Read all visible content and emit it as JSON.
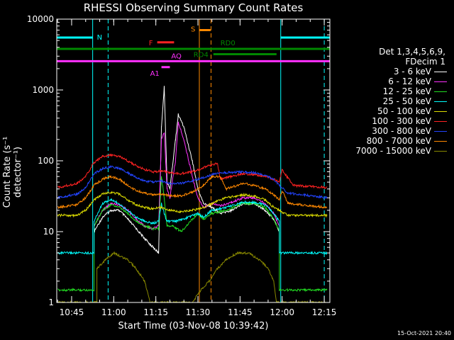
{
  "chart_data": {
    "type": "line",
    "title": "RHESSI Observing Summary Count Rates",
    "ylabel": "Count Rate (s⁻¹ detector⁻¹)",
    "xlabel": "Start Time (03-Nov-08 10:39:42)",
    "yscale": "log",
    "ylim": [
      1,
      10000
    ],
    "xlim": [
      "10:39:42",
      "12:17:00"
    ],
    "xticks": [
      "10:45",
      "11:00",
      "11:15",
      "11:30",
      "11:45",
      "12:00",
      "12:15"
    ],
    "yticks": [
      "1",
      "10",
      "100",
      "1000",
      "10000"
    ],
    "legend_header": [
      "Det 1,3,4,5,6,9,",
      "FDecim 1"
    ],
    "legend_position": "right",
    "series": [
      {
        "name": "3 - 6 keV",
        "color": "#ffffff",
        "points": [
          [
            "10:53",
            10
          ],
          [
            "10:56",
            16
          ],
          [
            "10:59",
            20
          ],
          [
            "11:02",
            20
          ],
          [
            "11:05",
            15
          ],
          [
            "11:08",
            11
          ],
          [
            "11:11",
            8
          ],
          [
            "11:14",
            6
          ],
          [
            "11:16",
            5
          ],
          [
            "11:17",
            300
          ],
          [
            "11:18",
            1100
          ],
          [
            "11:19",
            50
          ],
          [
            "11:20",
            40
          ],
          [
            "11:22",
            200
          ],
          [
            "11:23",
            450
          ],
          [
            "11:25",
            300
          ],
          [
            "11:28",
            100
          ],
          [
            "11:30",
            40
          ],
          [
            "11:32",
            25
          ],
          [
            "11:35",
            22
          ],
          [
            "11:38",
            18
          ],
          [
            "11:42",
            20
          ],
          [
            "11:46",
            25
          ],
          [
            "11:50",
            25
          ],
          [
            "11:54",
            20
          ],
          [
            "11:57",
            15
          ],
          [
            "11:59",
            10
          ]
        ]
      },
      {
        "name": "6 - 12 keV",
        "color": "#ff30ff",
        "points": [
          [
            "10:53",
            12
          ],
          [
            "10:56",
            20
          ],
          [
            "10:59",
            25
          ],
          [
            "11:02",
            24
          ],
          [
            "11:05",
            20
          ],
          [
            "11:08",
            15
          ],
          [
            "11:11",
            12
          ],
          [
            "11:14",
            11
          ],
          [
            "11:16",
            12
          ],
          [
            "11:17",
            200
          ],
          [
            "11:18",
            250
          ],
          [
            "11:19",
            40
          ],
          [
            "11:20",
            30
          ],
          [
            "11:22",
            100
          ],
          [
            "11:23",
            350
          ],
          [
            "11:25",
            200
          ],
          [
            "11:28",
            60
          ],
          [
            "11:30",
            30
          ],
          [
            "11:32",
            22
          ],
          [
            "11:35",
            25
          ],
          [
            "11:38",
            23
          ],
          [
            "11:42",
            26
          ],
          [
            "11:46",
            30
          ],
          [
            "11:50",
            30
          ],
          [
            "11:54",
            25
          ],
          [
            "11:57",
            18
          ],
          [
            "11:59",
            12
          ]
        ]
      },
      {
        "name": "12 - 25 keV",
        "color": "#22dd22",
        "points": [
          [
            "10:40",
            1.5
          ],
          [
            "10:53",
            1.5
          ],
          [
            "10:53",
            12
          ],
          [
            "10:56",
            20
          ],
          [
            "10:59",
            24
          ],
          [
            "11:02",
            22
          ],
          [
            "11:05",
            18
          ],
          [
            "11:08",
            14
          ],
          [
            "11:11",
            12
          ],
          [
            "11:14",
            11
          ],
          [
            "11:16",
            11
          ],
          [
            "11:17",
            60
          ],
          [
            "11:18",
            30
          ],
          [
            "11:19",
            12
          ],
          [
            "11:21",
            12
          ],
          [
            "11:24",
            10
          ],
          [
            "11:28",
            15
          ],
          [
            "11:30",
            18
          ],
          [
            "11:32",
            15
          ],
          [
            "11:35",
            18
          ],
          [
            "11:40",
            20
          ],
          [
            "11:46",
            25
          ],
          [
            "11:50",
            25
          ],
          [
            "11:54",
            22
          ],
          [
            "11:57",
            15
          ],
          [
            "11:59",
            10
          ],
          [
            "11:59",
            1.5
          ],
          [
            "12:16",
            1.5
          ]
        ]
      },
      {
        "name": "25 - 50 keV",
        "color": "#00ffff",
        "points": [
          [
            "10:40",
            5
          ],
          [
            "10:53",
            5
          ],
          [
            "10:53",
            14
          ],
          [
            "10:56",
            25
          ],
          [
            "10:59",
            28
          ],
          [
            "11:02",
            25
          ],
          [
            "11:05",
            20
          ],
          [
            "11:08",
            16
          ],
          [
            "11:11",
            14
          ],
          [
            "11:14",
            13
          ],
          [
            "11:16",
            14
          ],
          [
            "11:17",
            25
          ],
          [
            "11:18",
            18
          ],
          [
            "11:19",
            14
          ],
          [
            "11:22",
            14
          ],
          [
            "11:25",
            15
          ],
          [
            "11:28",
            17
          ],
          [
            "11:30",
            18
          ],
          [
            "11:32",
            16
          ],
          [
            "11:35",
            20
          ],
          [
            "11:40",
            22
          ],
          [
            "11:46",
            26
          ],
          [
            "11:50",
            26
          ],
          [
            "11:54",
            24
          ],
          [
            "11:57",
            18
          ],
          [
            "11:59",
            14
          ],
          [
            "11:59",
            5
          ],
          [
            "12:16",
            5
          ]
        ]
      },
      {
        "name": "50 - 100 keV",
        "color": "#dddd00",
        "points": [
          [
            "10:40",
            17
          ],
          [
            "10:47",
            17
          ],
          [
            "10:50",
            20
          ],
          [
            "10:53",
            28
          ],
          [
            "10:56",
            34
          ],
          [
            "10:59",
            36
          ],
          [
            "11:02",
            34
          ],
          [
            "11:05",
            28
          ],
          [
            "11:08",
            24
          ],
          [
            "11:11",
            22
          ],
          [
            "11:14",
            21
          ],
          [
            "11:17",
            22
          ],
          [
            "11:20",
            20
          ],
          [
            "11:24",
            19
          ],
          [
            "11:28",
            20
          ],
          [
            "11:32",
            22
          ],
          [
            "11:36",
            26
          ],
          [
            "11:40",
            30
          ],
          [
            "11:46",
            33
          ],
          [
            "11:50",
            32
          ],
          [
            "11:54",
            28
          ],
          [
            "11:57",
            22
          ],
          [
            "11:59",
            20
          ],
          [
            "12:02",
            17
          ],
          [
            "12:16",
            17
          ]
        ]
      },
      {
        "name": "100 - 300 keV",
        "color": "#ff2222",
        "points": [
          [
            "10:40",
            42
          ],
          [
            "10:47",
            48
          ],
          [
            "10:50",
            60
          ],
          [
            "10:53",
            95
          ],
          [
            "10:56",
            115
          ],
          [
            "10:59",
            120
          ],
          [
            "11:02",
            115
          ],
          [
            "11:05",
            100
          ],
          [
            "11:08",
            85
          ],
          [
            "11:11",
            75
          ],
          [
            "11:14",
            70
          ],
          [
            "11:17",
            72
          ],
          [
            "11:20",
            68
          ],
          [
            "11:24",
            66
          ],
          [
            "11:28",
            70
          ],
          [
            "11:32",
            80
          ],
          [
            "11:36",
            90
          ],
          [
            "11:37",
            90
          ],
          [
            "11:38",
            55
          ],
          [
            "11:42",
            60
          ],
          [
            "11:46",
            66
          ],
          [
            "11:50",
            64
          ],
          [
            "11:54",
            60
          ],
          [
            "11:57",
            55
          ],
          [
            "11:59",
            50
          ],
          [
            "12:00",
            75
          ],
          [
            "12:01",
            65
          ],
          [
            "12:04",
            45
          ],
          [
            "12:16",
            42
          ]
        ]
      },
      {
        "name": "300 - 800 keV",
        "color": "#2244ff",
        "points": [
          [
            "10:40",
            30
          ],
          [
            "10:47",
            34
          ],
          [
            "10:50",
            42
          ],
          [
            "10:53",
            65
          ],
          [
            "10:56",
            78
          ],
          [
            "10:59",
            82
          ],
          [
            "11:02",
            78
          ],
          [
            "11:05",
            68
          ],
          [
            "11:08",
            58
          ],
          [
            "11:11",
            52
          ],
          [
            "11:14",
            50
          ],
          [
            "11:17",
            52
          ],
          [
            "11:20",
            48
          ],
          [
            "11:24",
            48
          ],
          [
            "11:28",
            52
          ],
          [
            "11:32",
            58
          ],
          [
            "11:36",
            65
          ],
          [
            "11:40",
            68
          ],
          [
            "11:46",
            70
          ],
          [
            "11:50",
            68
          ],
          [
            "11:54",
            62
          ],
          [
            "11:57",
            55
          ],
          [
            "11:59",
            45
          ],
          [
            "12:02",
            35
          ],
          [
            "12:16",
            30
          ]
        ]
      },
      {
        "name": "800 - 7000 keV",
        "color": "#ff8800",
        "points": [
          [
            "10:40",
            22
          ],
          [
            "10:47",
            24
          ],
          [
            "10:50",
            30
          ],
          [
            "10:53",
            45
          ],
          [
            "10:56",
            55
          ],
          [
            "10:59",
            60
          ],
          [
            "11:02",
            55
          ],
          [
            "11:05",
            45
          ],
          [
            "11:08",
            38
          ],
          [
            "11:11",
            35
          ],
          [
            "11:14",
            33
          ],
          [
            "11:17",
            34
          ],
          [
            "11:20",
            32
          ],
          [
            "11:24",
            32
          ],
          [
            "11:28",
            36
          ],
          [
            "11:32",
            45
          ],
          [
            "11:35",
            60
          ],
          [
            "11:38",
            60
          ],
          [
            "11:40",
            40
          ],
          [
            "11:44",
            45
          ],
          [
            "11:46",
            48
          ],
          [
            "11:50",
            45
          ],
          [
            "11:54",
            40
          ],
          [
            "11:57",
            33
          ],
          [
            "11:59",
            28
          ],
          [
            "12:00",
            38
          ],
          [
            "12:02",
            25
          ],
          [
            "12:16",
            22
          ]
        ]
      },
      {
        "name": "7000 - 15000 keV",
        "color": "#888800",
        "points": [
          [
            "10:40",
            1
          ],
          [
            "10:54",
            1
          ],
          [
            "10:54",
            3
          ],
          [
            "10:57",
            4
          ],
          [
            "11:00",
            5
          ],
          [
            "11:05",
            4
          ],
          [
            "11:08",
            3
          ],
          [
            "11:11",
            2
          ],
          [
            "11:13",
            1
          ],
          [
            "11:28",
            1
          ],
          [
            "11:31",
            1.5
          ],
          [
            "11:34",
            2
          ],
          [
            "11:37",
            3
          ],
          [
            "11:40",
            4
          ],
          [
            "11:44",
            5
          ],
          [
            "11:48",
            5
          ],
          [
            "11:52",
            4
          ],
          [
            "11:55",
            3
          ],
          [
            "11:57",
            2
          ],
          [
            "11:58",
            1
          ],
          [
            "12:16",
            1
          ]
        ]
      }
    ],
    "annotations": [
      {
        "label": "N",
        "color": "#00ffff",
        "segments": [
          [
            "10:39:42",
            "10:52:30"
          ],
          [
            "11:59:30",
            "12:17:00"
          ]
        ],
        "y": 5500
      },
      {
        "label": "F",
        "color": "#ff2222",
        "segments": [
          [
            "11:15:30",
            "11:21:30"
          ]
        ],
        "y": 4700
      },
      {
        "label": "S",
        "color": "#ff8800",
        "segments": [
          [
            "11:30:30",
            "11:34:30"
          ]
        ],
        "y": 7000
      },
      {
        "label": "RD0",
        "color": "#008800",
        "segments": [
          [
            "10:39:42",
            "12:17:00"
          ]
        ],
        "y": 3800
      },
      {
        "label": "RD4",
        "color": "#008800",
        "segments": [
          [
            "11:35:30",
            "11:58:00"
          ]
        ],
        "y": 3200
      },
      {
        "label": "AQ",
        "color": "#ff30ff",
        "segments": [
          [
            "10:39:42",
            "12:17:00"
          ]
        ],
        "y": 2550
      },
      {
        "label": "A1",
        "color": "#ff30ff",
        "segments": [
          [
            "11:17:00",
            "11:20:00"
          ]
        ],
        "y": 2100
      }
    ],
    "vertical_lines": [
      {
        "time": "10:52:30",
        "color": "#00ffff",
        "style": "solid"
      },
      {
        "time": "10:58:00",
        "color": "#00ffff",
        "style": "dashed"
      },
      {
        "time": "11:30:30",
        "color": "#ff8800",
        "style": "solid"
      },
      {
        "time": "11:34:40",
        "color": "#ff8800",
        "style": "dashed"
      },
      {
        "time": "11:59:30",
        "color": "#00ffff",
        "style": "solid"
      },
      {
        "time": "12:15:00",
        "color": "#00ffff",
        "style": "dashed"
      }
    ]
  },
  "footer_stamp": "15-Oct-2021 20:40"
}
